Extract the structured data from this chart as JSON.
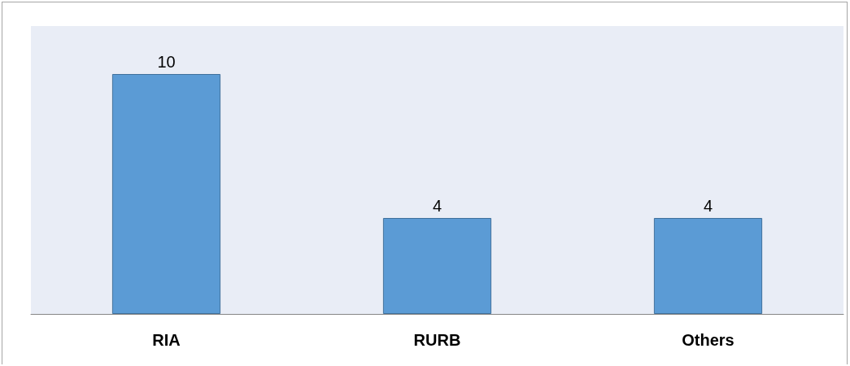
{
  "chart_data": {
    "type": "bar",
    "categories": [
      "RIA",
      "RURB",
      "Others"
    ],
    "values": [
      10,
      4,
      4
    ],
    "color": "#5b9bd5",
    "data_labels": true
  }
}
